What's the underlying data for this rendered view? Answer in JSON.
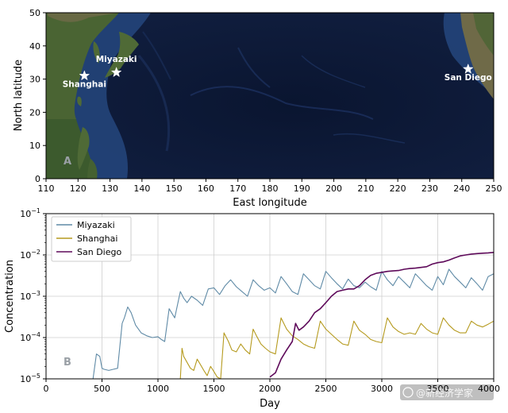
{
  "colors": {
    "miyazaki": "#5f8aa6",
    "shanghai": "#b59a1e",
    "san_diego": "#5e0a5a",
    "ocean": "#0c1a36",
    "shelf": "#2b4c86",
    "land": "#3f5a2c",
    "grid": "#cfcfcf"
  },
  "watermark": "@新经济学家",
  "chart_data": [
    {
      "type": "map",
      "panel_label": "A",
      "xlabel": "East longitude",
      "ylabel": "North latitude",
      "xlim": [
        110,
        250
      ],
      "ylim": [
        0,
        50
      ],
      "x_ticks": [
        "110",
        "120",
        "130",
        "140",
        "150",
        "160",
        "170",
        "180",
        "190",
        "200",
        "210",
        "220",
        "230",
        "240",
        "250"
      ],
      "y_ticks": [
        "0",
        "10",
        "20",
        "30",
        "40",
        "50"
      ],
      "markers": [
        {
          "name": "Miyazaki",
          "lon": 132,
          "lat": 32
        },
        {
          "name": "Shanghai",
          "lon": 122,
          "lat": 31
        },
        {
          "name": "San Diego",
          "lon": 242,
          "lat": 33
        }
      ]
    },
    {
      "type": "line",
      "panel_label": "B",
      "xlabel": "Day",
      "ylabel": "Concentration",
      "xlim": [
        0,
        4000
      ],
      "ylim": [
        1e-05,
        0.1
      ],
      "y_scale": "log",
      "grid": true,
      "legend_position": "top-left",
      "x_ticks": [
        "0",
        "500",
        "1000",
        "1500",
        "2000",
        "2500",
        "3000",
        "3500",
        "4000"
      ],
      "y_ticks": [
        {
          "base": "10",
          "exp": "−5"
        },
        {
          "base": "10",
          "exp": "−4"
        },
        {
          "base": "10",
          "exp": "−3"
        },
        {
          "base": "10",
          "exp": "−2"
        },
        {
          "base": "10",
          "exp": "−1"
        }
      ],
      "series": [
        {
          "name": "Miyazaki",
          "x": [
            420,
            450,
            480,
            500,
            520,
            560,
            600,
            640,
            680,
            700,
            730,
            760,
            800,
            850,
            900,
            950,
            1000,
            1030,
            1060,
            1100,
            1150,
            1200,
            1230,
            1260,
            1300,
            1350,
            1400,
            1450,
            1500,
            1550,
            1600,
            1650,
            1700,
            1750,
            1800,
            1850,
            1900,
            1950,
            2000,
            2050,
            2100,
            2150,
            2200,
            2250,
            2300,
            2350,
            2400,
            2450,
            2500,
            2550,
            2600,
            2650,
            2700,
            2750,
            2800,
            2850,
            2900,
            2950,
            3000,
            3050,
            3100,
            3150,
            3200,
            3250,
            3300,
            3350,
            3400,
            3450,
            3500,
            3550,
            3600,
            3650,
            3700,
            3750,
            3800,
            3850,
            3900,
            3950,
            4000
          ],
          "y": [
            1e-05,
            4e-05,
            3.5e-05,
            1.8e-05,
            1.7e-05,
            1.6e-05,
            1.7e-05,
            1.8e-05,
            0.00022,
            0.0003,
            0.00055,
            0.0004,
            0.0002,
            0.00013,
            0.00011,
            0.0001,
            0.000105,
            9e-05,
            8e-05,
            0.0005,
            0.0003,
            0.0013,
            0.0009,
            0.0007,
            0.001,
            0.0008,
            0.0006,
            0.0015,
            0.0016,
            0.0011,
            0.0018,
            0.0025,
            0.0017,
            0.0013,
            0.001,
            0.0025,
            0.0018,
            0.0014,
            0.0016,
            0.0012,
            0.003,
            0.002,
            0.0013,
            0.0011,
            0.0035,
            0.0025,
            0.0018,
            0.0015,
            0.004,
            0.0028,
            0.002,
            0.0015,
            0.0026,
            0.0018,
            0.0016,
            0.0022,
            0.0017,
            0.0014,
            0.004,
            0.0025,
            0.0018,
            0.003,
            0.0022,
            0.0016,
            0.0035,
            0.0025,
            0.0018,
            0.0014,
            0.003,
            0.0019,
            0.0045,
            0.003,
            0.0022,
            0.0016,
            0.0028,
            0.002,
            0.0014,
            0.003,
            0.0035
          ]
        },
        {
          "name": "Shanghai",
          "x": [
            1200,
            1215,
            1230,
            1260,
            1290,
            1320,
            1350,
            1380,
            1410,
            1440,
            1470,
            1500,
            1530,
            1560,
            1590,
            1630,
            1660,
            1700,
            1740,
            1780,
            1820,
            1850,
            1880,
            1920,
            1960,
            2000,
            2050,
            2100,
            2150,
            2200,
            2250,
            2300,
            2350,
            2400,
            2450,
            2500,
            2550,
            2600,
            2650,
            2700,
            2750,
            2800,
            2850,
            2900,
            2950,
            3000,
            3050,
            3100,
            3150,
            3200,
            3250,
            3300,
            3350,
            3400,
            3450,
            3500,
            3550,
            3600,
            3650,
            3700,
            3750,
            3800,
            3850,
            3900,
            3950,
            4000
          ],
          "y": [
            1e-05,
            5.5e-05,
            3.5e-05,
            2.5e-05,
            1.8e-05,
            1.6e-05,
            3e-05,
            2.2e-05,
            1.6e-05,
            1.2e-05,
            2e-05,
            1.5e-05,
            1.1e-05,
            1e-05,
            0.00013,
            8e-05,
            5e-05,
            4.5e-05,
            7e-05,
            5e-05,
            4e-05,
            0.00016,
            0.00011,
            7e-05,
            5.5e-05,
            4.5e-05,
            4e-05,
            0.0003,
            0.00016,
            0.00011,
            9e-05,
            7e-05,
            6e-05,
            5.5e-05,
            0.00025,
            0.00016,
            0.00012,
            9e-05,
            7e-05,
            6.5e-05,
            0.00025,
            0.00015,
            0.00012,
            9e-05,
            8e-05,
            7.5e-05,
            0.0003,
            0.00018,
            0.00014,
            0.00012,
            0.00013,
            0.00012,
            0.00022,
            0.00016,
            0.00013,
            0.00012,
            0.0003,
            0.0002,
            0.00015,
            0.00013,
            0.00013,
            0.00025,
            0.0002,
            0.00018,
            0.00021,
            0.00025
          ]
        },
        {
          "name": "San Diego",
          "x": [
            2000,
            2050,
            2100,
            2150,
            2200,
            2230,
            2260,
            2300,
            2350,
            2400,
            2450,
            2500,
            2550,
            2600,
            2650,
            2700,
            2750,
            2800,
            2850,
            2900,
            2950,
            3000,
            3050,
            3100,
            3150,
            3200,
            3250,
            3300,
            3350,
            3400,
            3450,
            3500,
            3550,
            3600,
            3650,
            3700,
            3750,
            3800,
            3850,
            3900,
            3950,
            4000
          ],
          "y": [
            1.1e-05,
            1.4e-05,
            3e-05,
            5e-05,
            8e-05,
            0.00022,
            0.00015,
            0.00018,
            0.00025,
            0.0004,
            0.0005,
            0.0007,
            0.001,
            0.0013,
            0.0014,
            0.0015,
            0.0015,
            0.0018,
            0.0025,
            0.0032,
            0.0036,
            0.0038,
            0.004,
            0.0041,
            0.0042,
            0.0045,
            0.0047,
            0.0048,
            0.005,
            0.0052,
            0.006,
            0.0065,
            0.0068,
            0.0075,
            0.0085,
            0.0095,
            0.01,
            0.0105,
            0.0108,
            0.011,
            0.0112,
            0.0115
          ]
        }
      ]
    }
  ]
}
